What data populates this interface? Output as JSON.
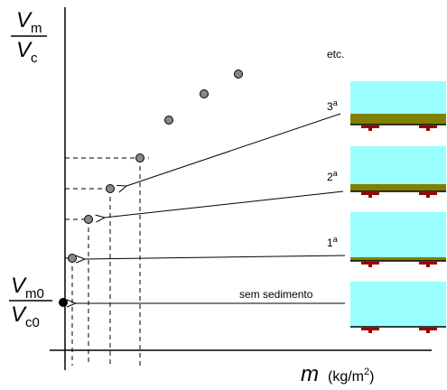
{
  "y_label": {
    "numerator": {
      "main": "V",
      "sub": "m"
    },
    "denominator": {
      "main": "V",
      "sub": "c"
    }
  },
  "y0_label": {
    "numerator": {
      "main": "V",
      "sub": "m0"
    },
    "denominator": {
      "main": "V",
      "sub": "c0"
    }
  },
  "x_label": {
    "symbol": "m",
    "unit_start": "(kg/m",
    "unit_power": "2",
    "unit_end": ")"
  },
  "panels": [
    {
      "label": "etc."
    },
    {
      "number": "3",
      "superscript": "a"
    },
    {
      "number": "2",
      "superscript": "a"
    },
    {
      "number": "1",
      "superscript": "a"
    },
    {
      "label": "sem sedimento"
    }
  ]
}
